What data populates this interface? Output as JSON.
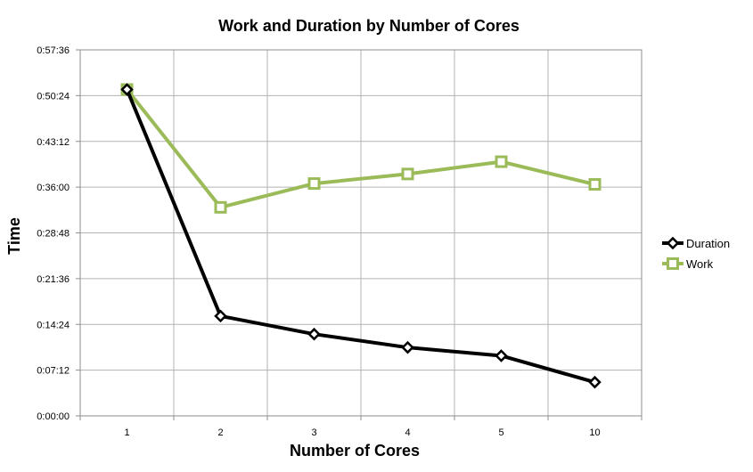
{
  "chart_data": {
    "type": "line",
    "title": "Work and Duration by Number of Cores",
    "xlabel": "Number of Cores",
    "ylabel": "Time",
    "categories": [
      "1",
      "2",
      "3",
      "4",
      "5",
      "10"
    ],
    "y_ticks": [
      "0:00:00",
      "0:07:12",
      "0:14:24",
      "0:21:36",
      "0:28:48",
      "0:36:00",
      "0:43:12",
      "0:50:24",
      "0:57:36"
    ],
    "ylim_seconds": [
      0,
      3456
    ],
    "y_unit": "seconds (axis labels shown as h:mm:ss)",
    "grid": true,
    "legend_position": "right",
    "series": [
      {
        "name": "Duration",
        "color": "#000000",
        "marker": "diamond",
        "values_seconds": [
          3082,
          943,
          772,
          646,
          568,
          318
        ],
        "values_time": [
          "0:51:22",
          "0:15:43",
          "0:12:52",
          "0:10:46",
          "0:09:28",
          "0:05:18"
        ]
      },
      {
        "name": "Work",
        "color": "#9bbb59",
        "marker": "square",
        "values_seconds": [
          3082,
          1969,
          2194,
          2284,
          2400,
          2186
        ],
        "values_time": [
          "0:51:22",
          "0:32:49",
          "0:36:34",
          "0:38:04",
          "0:40:00",
          "0:36:26"
        ]
      }
    ]
  }
}
